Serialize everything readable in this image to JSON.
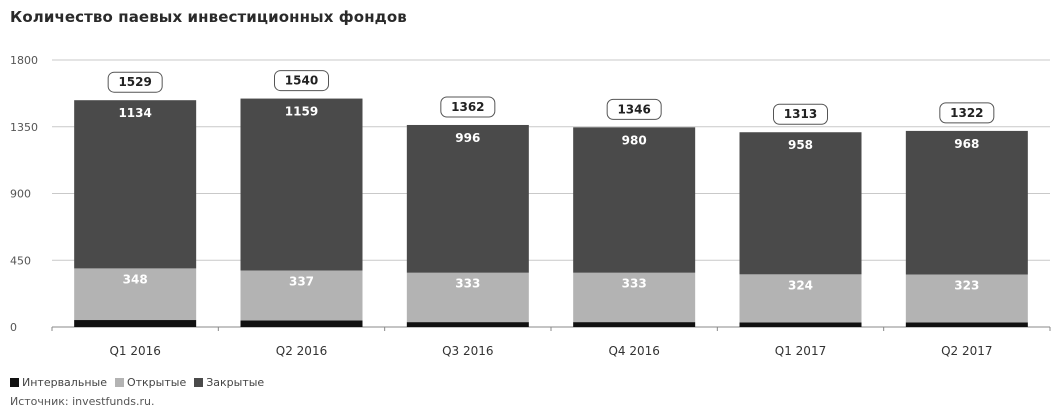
{
  "chart_data": {
    "type": "bar",
    "stacked": true,
    "title": "Количество паевых инвестиционных фондов",
    "categories": [
      "Q1 2016",
      "Q2 2016",
      "Q3 2016",
      "Q4 2016",
      "Q1 2017",
      "Q2 2017"
    ],
    "series": [
      {
        "name": "Интервальные",
        "color": "#111111",
        "values": [
          47,
          44,
          33,
          33,
          31,
          31
        ]
      },
      {
        "name": "Открытые",
        "color": "#b3b3b3",
        "values": [
          348,
          337,
          333,
          333,
          324,
          323
        ]
      },
      {
        "name": "Закрытые",
        "color": "#4a4a4a",
        "values": [
          1134,
          1159,
          996,
          980,
          958,
          968
        ]
      }
    ],
    "totals": [
      1529,
      1540,
      1362,
      1346,
      1313,
      1322
    ],
    "yticks": [
      0,
      450,
      900,
      1350,
      1800
    ],
    "ylim": [
      0,
      1800
    ],
    "grid": true,
    "legend_position": "bottom-left",
    "source": "Источник: investfunds.ru."
  }
}
